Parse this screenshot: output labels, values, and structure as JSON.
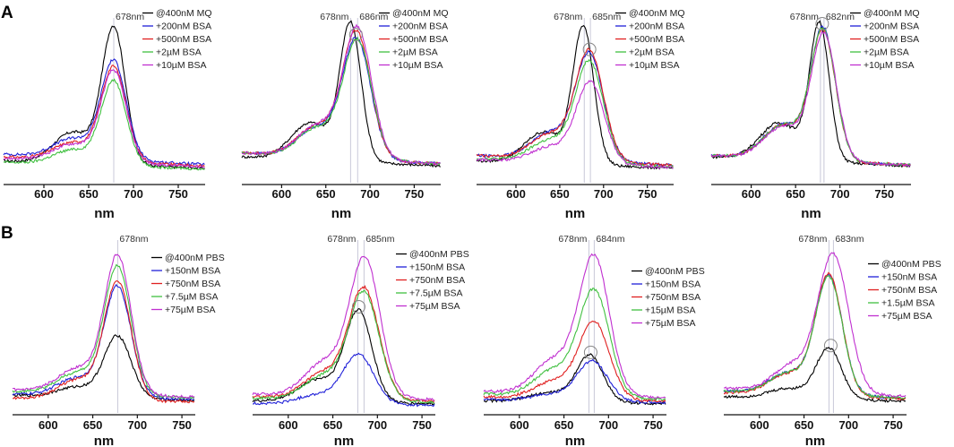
{
  "figure": {
    "panel_labels": [
      "A",
      "B"
    ]
  },
  "chart_data": [
    {
      "type": "line",
      "row": "A",
      "col": 1,
      "xlabel": "nm",
      "xlim": [
        555,
        780
      ],
      "ylim": [
        0,
        1.15
      ],
      "xticks": [
        "600",
        "650",
        "700",
        "750"
      ],
      "xtick_values": [
        600,
        650,
        700,
        750
      ],
      "peak_labels": [
        "678nm"
      ],
      "peak_positions": [
        678
      ],
      "circles": [],
      "series": [
        {
          "name": "@400nM MQ",
          "color": "#000000",
          "amp": 1.0,
          "center": 678,
          "width": 13,
          "shoulder": 0.42,
          "base": 0.12
        },
        {
          "name": "+200nM BSA",
          "color": "#2020d8",
          "amp": 0.72,
          "center": 678,
          "width": 14,
          "shoulder": 0.36,
          "base": 0.17
        },
        {
          "name": "+500nM BSA",
          "color": "#e02020",
          "amp": 0.69,
          "center": 678,
          "width": 14,
          "shoulder": 0.34,
          "base": 0.15
        },
        {
          "name": "+2µM BSA",
          "color": "#40c040",
          "amp": 0.62,
          "center": 678,
          "width": 14,
          "shoulder": 0.32,
          "base": 0.11
        },
        {
          "name": "+10µM BSA",
          "color": "#c030d0",
          "amp": 0.67,
          "center": 678,
          "width": 14,
          "shoulder": 0.34,
          "base": 0.14
        }
      ]
    },
    {
      "type": "line",
      "row": "A",
      "col": 2,
      "xlabel": "nm",
      "xlim": [
        555,
        780
      ],
      "ylim": [
        0,
        1.15
      ],
      "xticks": [
        "600",
        "650",
        "700",
        "750"
      ],
      "xtick_values": [
        600,
        650,
        700,
        750
      ],
      "peak_labels": [
        "678nm",
        "686nm"
      ],
      "peak_positions": [
        678,
        686
      ],
      "circles": [
        684
      ],
      "series": [
        {
          "name": "@400nM MQ",
          "color": "#000000",
          "amp": 1.0,
          "center": 678,
          "width": 12,
          "shoulder": 0.5,
          "base": 0.15
        },
        {
          "name": "+200nM BSA",
          "color": "#2020d8",
          "amp": 0.87,
          "center": 685,
          "width": 16,
          "shoulder": 0.45,
          "base": 0.18
        },
        {
          "name": "+500nM BSA",
          "color": "#e02020",
          "amp": 0.92,
          "center": 685,
          "width": 16,
          "shoulder": 0.45,
          "base": 0.18
        },
        {
          "name": "+2µM BSA",
          "color": "#40c040",
          "amp": 0.86,
          "center": 686,
          "width": 16,
          "shoulder": 0.45,
          "base": 0.18
        },
        {
          "name": "+10µM BSA",
          "color": "#c030d0",
          "amp": 0.95,
          "center": 686,
          "width": 16,
          "shoulder": 0.45,
          "base": 0.18
        }
      ]
    },
    {
      "type": "line",
      "row": "A",
      "col": 3,
      "xlabel": "nm",
      "xlim": [
        555,
        780
      ],
      "ylim": [
        0,
        1.15
      ],
      "xticks": [
        "600",
        "650",
        "700",
        "750"
      ],
      "xtick_values": [
        600,
        650,
        700,
        750
      ],
      "peak_labels": [
        "678nm",
        "685nm"
      ],
      "peak_positions": [
        678,
        685
      ],
      "circles": [
        684
      ],
      "series": [
        {
          "name": "@400nM MQ",
          "color": "#000000",
          "amp": 1.0,
          "center": 677,
          "width": 12,
          "shoulder": 0.42,
          "base": 0.12
        },
        {
          "name": "+200nM BSA",
          "color": "#2020d8",
          "amp": 0.78,
          "center": 684,
          "width": 16,
          "shoulder": 0.45,
          "base": 0.16
        },
        {
          "name": "+500nM BSA",
          "color": "#e02020",
          "amp": 0.8,
          "center": 684,
          "width": 16,
          "shoulder": 0.42,
          "base": 0.16
        },
        {
          "name": "+2µM BSA",
          "color": "#40c040",
          "amp": 0.74,
          "center": 684,
          "width": 16,
          "shoulder": 0.38,
          "base": 0.14
        },
        {
          "name": "+10µM BSA",
          "color": "#c030d0",
          "amp": 0.6,
          "center": 685,
          "width": 16,
          "shoulder": 0.35,
          "base": 0.13
        }
      ]
    },
    {
      "type": "line",
      "row": "A",
      "col": 4,
      "xlabel": "nm",
      "xlim": [
        555,
        780
      ],
      "ylim": [
        0,
        1.15
      ],
      "xticks": [
        "600",
        "650",
        "700",
        "750"
      ],
      "xtick_values": [
        600,
        650,
        700,
        750
      ],
      "peak_labels": [
        "678nm",
        "682nm"
      ],
      "peak_positions": [
        678,
        682
      ],
      "circles": [
        680
      ],
      "series": [
        {
          "name": "@400nM MQ",
          "color": "#000000",
          "amp": 1.0,
          "center": 677,
          "width": 11,
          "shoulder": 0.5,
          "base": 0.15
        },
        {
          "name": "+200nM BSA",
          "color": "#2020d8",
          "amp": 0.96,
          "center": 681,
          "width": 14,
          "shoulder": 0.48,
          "base": 0.16
        },
        {
          "name": "+500nM BSA",
          "color": "#e02020",
          "amp": 0.94,
          "center": 681,
          "width": 14,
          "shoulder": 0.48,
          "base": 0.16
        },
        {
          "name": "+2µM BSA",
          "color": "#40c040",
          "amp": 0.95,
          "center": 681,
          "width": 14,
          "shoulder": 0.48,
          "base": 0.16
        },
        {
          "name": "+10µM BSA",
          "color": "#c030d0",
          "amp": 0.92,
          "center": 682,
          "width": 14,
          "shoulder": 0.48,
          "base": 0.16
        }
      ]
    },
    {
      "type": "line",
      "row": "B",
      "col": 1,
      "xlabel": "nm",
      "xlim": [
        560,
        765
      ],
      "ylim": [
        0,
        1.2
      ],
      "xticks": [
        "600",
        "650",
        "700",
        "750"
      ],
      "xtick_values": [
        600,
        650,
        700,
        750
      ],
      "peak_labels": [
        "678nm"
      ],
      "peak_positions": [
        678
      ],
      "circles": [],
      "series": [
        {
          "name": "@400nM PBS",
          "color": "#000000",
          "amp": 0.45,
          "center": 678,
          "width": 15,
          "shoulder": 0.3,
          "base": 0.09
        },
        {
          "name": "+150nM BSA",
          "color": "#2020d8",
          "amp": 0.8,
          "center": 678,
          "width": 15,
          "shoulder": 0.3,
          "base": 0.1
        },
        {
          "name": "+750nM BSA",
          "color": "#e02020",
          "amp": 0.86,
          "center": 678,
          "width": 15,
          "shoulder": 0.3,
          "base": 0.07
        },
        {
          "name": "+7.5µM BSA",
          "color": "#40c040",
          "amp": 0.93,
          "center": 678,
          "width": 15,
          "shoulder": 0.3,
          "base": 0.12
        },
        {
          "name": "+75µM BSA",
          "color": "#c030d0",
          "amp": 1.0,
          "center": 678,
          "width": 15,
          "shoulder": 0.32,
          "base": 0.13
        }
      ]
    },
    {
      "type": "line",
      "row": "B",
      "col": 2,
      "xlabel": "nm",
      "xlim": [
        560,
        765
      ],
      "ylim": [
        0,
        1.2
      ],
      "xticks": [
        "600",
        "650",
        "700",
        "750"
      ],
      "xtick_values": [
        600,
        650,
        700,
        750
      ],
      "peak_labels": [
        "678nm",
        "685nm"
      ],
      "peak_positions": [
        678,
        685
      ],
      "circles": [
        679
      ],
      "series": [
        {
          "name": "@400nM PBS",
          "color": "#000000",
          "amp": 0.66,
          "center": 679,
          "width": 15,
          "shoulder": 0.45,
          "base": 0.05
        },
        {
          "name": "+150nM BSA",
          "color": "#2020d8",
          "amp": 0.36,
          "center": 679,
          "width": 17,
          "shoulder": 0.35,
          "base": 0.03
        },
        {
          "name": "+750nM BSA",
          "color": "#e02020",
          "amp": 0.8,
          "center": 685,
          "width": 17,
          "shoulder": 0.42,
          "base": 0.08
        },
        {
          "name": "+7.5µM BSA",
          "color": "#40c040",
          "amp": 0.78,
          "center": 685,
          "width": 17,
          "shoulder": 0.4,
          "base": 0.07
        },
        {
          "name": "+75µM BSA",
          "color": "#c030d0",
          "amp": 1.0,
          "center": 686,
          "width": 17,
          "shoulder": 0.45,
          "base": 0.1
        }
      ]
    },
    {
      "type": "line",
      "row": "B",
      "col": 3,
      "xlabel": "nm",
      "xlim": [
        560,
        765
      ],
      "ylim": [
        0,
        1.2
      ],
      "xticks": [
        "600",
        "650",
        "700",
        "750"
      ],
      "xtick_values": [
        600,
        650,
        700,
        750
      ],
      "peak_labels": [
        "678nm",
        "684nm"
      ],
      "peak_positions": [
        678,
        684
      ],
      "circles": [
        680
      ],
      "series": [
        {
          "name": "@400nM PBS",
          "color": "#000000",
          "amp": 0.34,
          "center": 679,
          "width": 15,
          "shoulder": 0.35,
          "base": 0.05
        },
        {
          "name": "+150nM BSA",
          "color": "#2020d8",
          "amp": 0.29,
          "center": 682,
          "width": 17,
          "shoulder": 0.3,
          "base": 0.06
        },
        {
          "name": "+750nM BSA",
          "color": "#e02020",
          "amp": 0.56,
          "center": 684,
          "width": 17,
          "shoulder": 0.4,
          "base": 0.08
        },
        {
          "name": "+15µM BSA",
          "color": "#40c040",
          "amp": 0.77,
          "center": 684,
          "width": 17,
          "shoulder": 0.45,
          "base": 0.1
        },
        {
          "name": "+75µM BSA",
          "color": "#c030d0",
          "amp": 1.0,
          "center": 684,
          "width": 17,
          "shoulder": 0.45,
          "base": 0.12
        }
      ]
    },
    {
      "type": "line",
      "row": "B",
      "col": 4,
      "xlabel": "nm",
      "xlim": [
        560,
        765
      ],
      "ylim": [
        0,
        1.2
      ],
      "xticks": [
        "600",
        "650",
        "700",
        "750"
      ],
      "xtick_values": [
        600,
        650,
        700,
        750
      ],
      "peak_labels": [
        "678nm",
        "683nm"
      ],
      "peak_positions": [
        678,
        683
      ],
      "circles": [
        680
      ],
      "series": [
        {
          "name": "@400nM PBS",
          "color": "#000000",
          "amp": 0.37,
          "center": 678,
          "width": 14,
          "shoulder": 0.35,
          "base": 0.08
        },
        {
          "name": "+150nM BSA",
          "color": "#2020d8",
          "amp": 0.86,
          "center": 678,
          "width": 15,
          "shoulder": 0.32,
          "base": 0.12
        },
        {
          "name": "+750nM BSA",
          "color": "#e02020",
          "amp": 0.88,
          "center": 678,
          "width": 15,
          "shoulder": 0.32,
          "base": 0.11
        },
        {
          "name": "+1.5µM BSA",
          "color": "#40c040",
          "amp": 0.85,
          "center": 678,
          "width": 15,
          "shoulder": 0.32,
          "base": 0.12
        },
        {
          "name": "+75µM BSA",
          "color": "#c030d0",
          "amp": 1.0,
          "center": 683,
          "width": 17,
          "shoulder": 0.35,
          "base": 0.14
        }
      ]
    }
  ]
}
